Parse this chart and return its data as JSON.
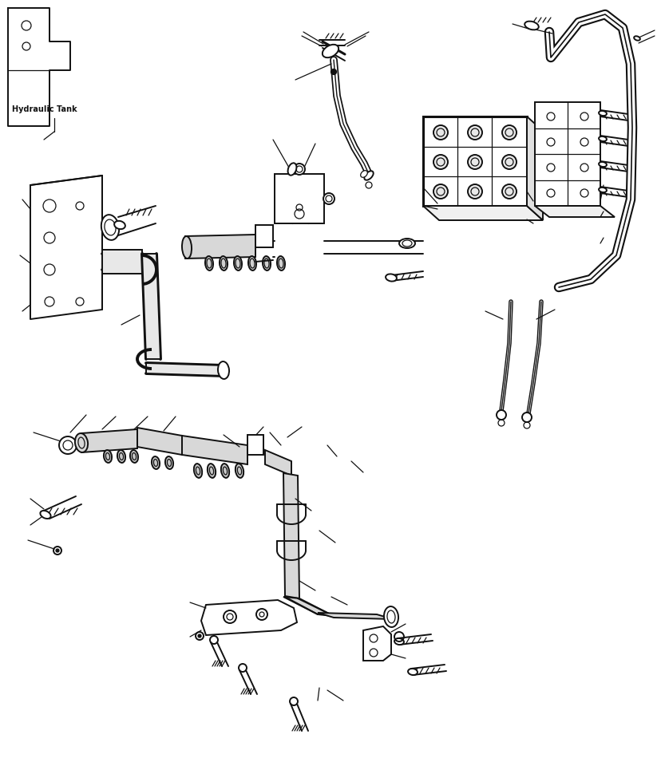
{
  "background_color": "#ffffff",
  "line_color": "#111111",
  "label_text": "Hydraulic Tank",
  "fig_width": 8.33,
  "fig_height": 9.5,
  "dpi": 100,
  "lw_main": 1.4,
  "lw_thin": 0.9,
  "lw_thick": 2.2,
  "lw_pipe": 2.8
}
